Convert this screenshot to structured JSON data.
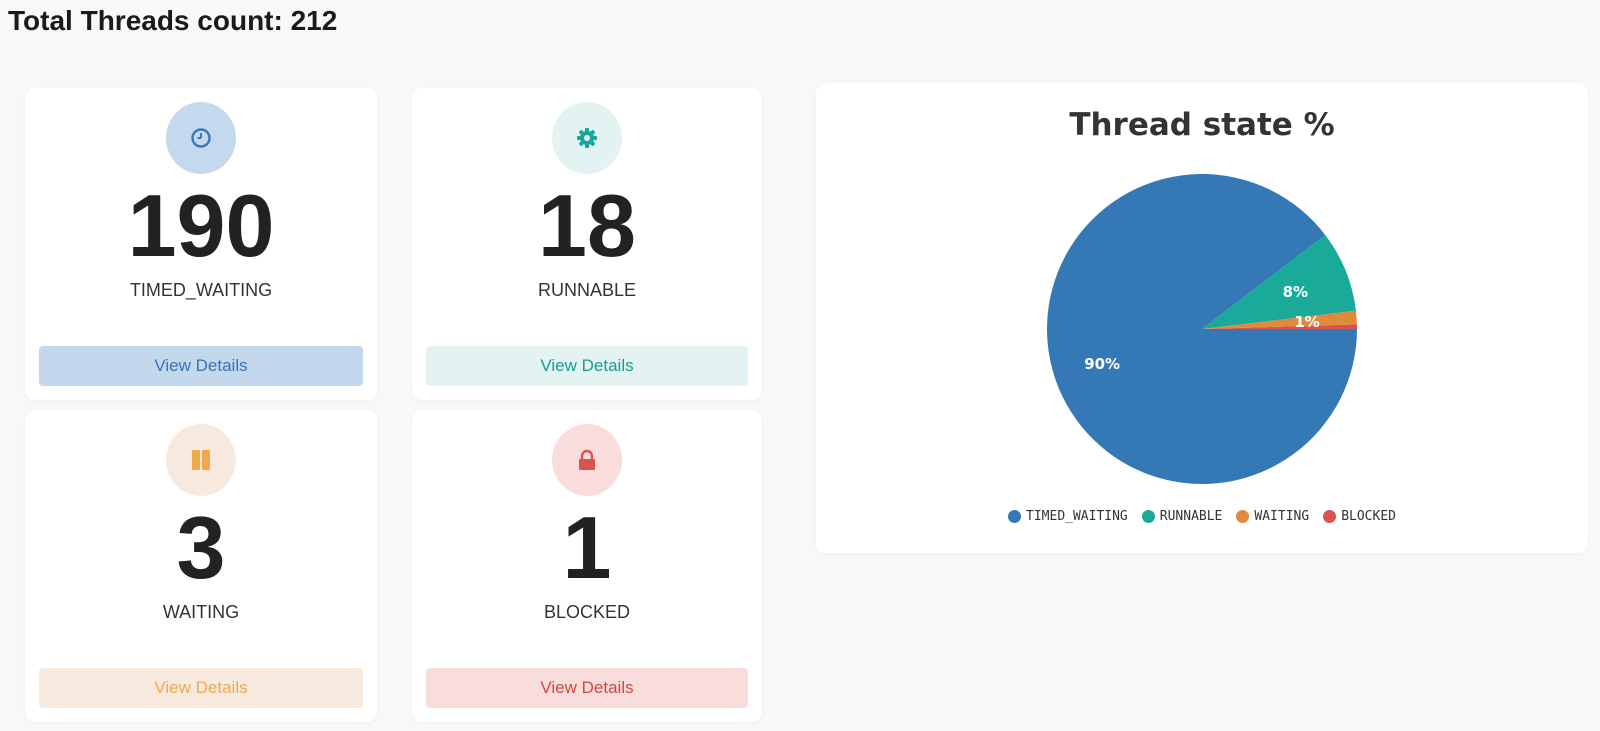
{
  "header": {
    "title": "Total Threads count: 212"
  },
  "cards": [
    {
      "value": "190",
      "label": "TIMED_WAITING",
      "button": "View Details",
      "icon": "clock-icon",
      "icon_bg": "#c5d9ee",
      "icon_color": "#3c76b6",
      "btn_bg": "#c3d7ed",
      "btn_color": "#3974b3"
    },
    {
      "value": "18",
      "label": "RUNNABLE",
      "button": "View Details",
      "icon": "gear-icon",
      "icon_bg": "#e2f3f2",
      "icon_color": "#17a79c",
      "btn_bg": "#e2f3f2",
      "btn_color": "#1a9d92"
    },
    {
      "value": "3",
      "label": "WAITING",
      "button": "View Details",
      "icon": "pause-icon",
      "icon_bg": "#f7e9dd",
      "icon_color": "#f0a94a",
      "btn_bg": "#f7e9dd",
      "btn_color": "#f0a94a"
    },
    {
      "value": "1",
      "label": "BLOCKED",
      "button": "View Details",
      "icon": "lock-icon",
      "icon_bg": "#f9dddd",
      "icon_color": "#d9534f",
      "btn_bg": "#f9dddd",
      "btn_color": "#d0473f"
    }
  ],
  "chart_data": {
    "type": "pie",
    "title": "Thread state %",
    "categories": [
      "TIMED_WAITING",
      "RUNNABLE",
      "WAITING",
      "BLOCKED"
    ],
    "values": [
      190,
      18,
      3,
      1
    ],
    "data_labels": [
      "90%",
      "8%",
      "1%",
      ""
    ],
    "colors": [
      "#3479b6",
      "#1aaa9a",
      "#e08b3c",
      "#d9534f"
    ],
    "legend_position": "bottom"
  }
}
